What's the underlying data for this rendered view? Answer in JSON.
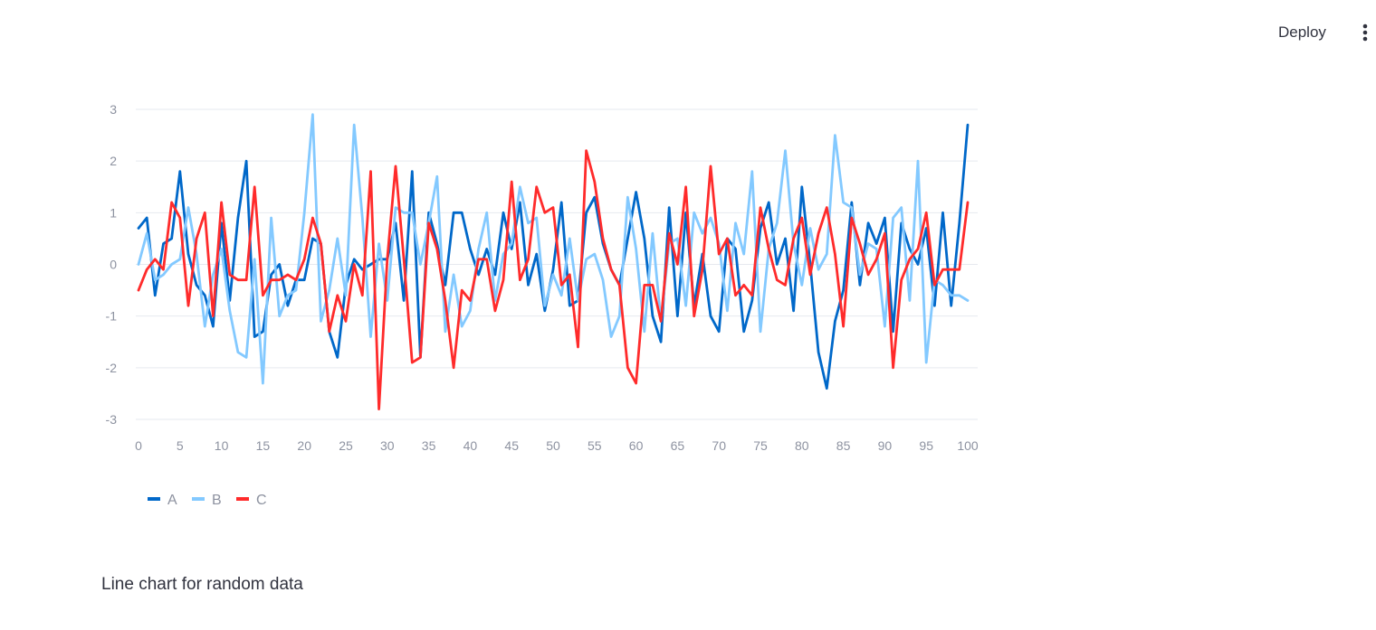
{
  "header": {
    "deploy_label": "Deploy",
    "menu_icon": "vertical-ellipsis-icon"
  },
  "caption": "Line chart for random data",
  "chart_data": {
    "type": "line",
    "title": "",
    "xlabel": "",
    "ylabel": "",
    "xlim": [
      0,
      100
    ],
    "ylim": [
      -3,
      3
    ],
    "xticks": [
      0,
      5,
      10,
      15,
      20,
      25,
      30,
      35,
      40,
      45,
      50,
      55,
      60,
      65,
      70,
      75,
      80,
      85,
      90,
      95,
      100
    ],
    "yticks": [
      -3,
      -2,
      -1,
      0,
      1,
      2,
      3
    ],
    "grid": true,
    "legend": "bottom-left",
    "x": [
      0,
      1,
      2,
      3,
      4,
      5,
      6,
      7,
      8,
      9,
      10,
      11,
      12,
      13,
      14,
      15,
      16,
      17,
      18,
      19,
      20,
      21,
      22,
      23,
      24,
      25,
      26,
      27,
      28,
      29,
      30,
      31,
      32,
      33,
      34,
      35,
      36,
      37,
      38,
      39,
      40,
      41,
      42,
      43,
      44,
      45,
      46,
      47,
      48,
      49,
      50,
      51,
      52,
      53,
      54,
      55,
      56,
      57,
      58,
      59,
      60,
      61,
      62,
      63,
      64,
      65,
      66,
      67,
      68,
      69,
      70,
      71,
      72,
      73,
      74,
      75,
      76,
      77,
      78,
      79,
      80,
      81,
      82,
      83,
      84,
      85,
      86,
      87,
      88,
      89,
      90,
      91,
      92,
      93,
      94,
      95,
      96,
      97,
      98,
      99,
      100
    ],
    "series": [
      {
        "name": "A",
        "color": "#0068c9",
        "values": [
          0.7,
          0.9,
          -0.6,
          0.4,
          0.5,
          1.8,
          0.2,
          -0.4,
          -0.6,
          -1.2,
          0.8,
          -0.7,
          0.9,
          2.0,
          -1.4,
          -1.3,
          -0.2,
          0.0,
          -0.8,
          -0.3,
          -0.3,
          0.5,
          0.4,
          -1.3,
          -1.8,
          -0.4,
          0.1,
          -0.1,
          0.0,
          0.1,
          0.1,
          0.8,
          -0.7,
          1.8,
          -1.8,
          1.0,
          0.4,
          -0.4,
          1.0,
          1.0,
          0.3,
          -0.2,
          0.3,
          -0.2,
          1.0,
          0.3,
          1.2,
          -0.4,
          0.2,
          -0.9,
          -0.1,
          1.2,
          -0.8,
          -0.7,
          1.0,
          1.3,
          0.4,
          -0.1,
          -0.4,
          0.5,
          1.4,
          0.5,
          -1.0,
          -1.5,
          1.1,
          -1.0,
          1.0,
          -0.8,
          0.2,
          -1.0,
          -1.3,
          0.5,
          0.3,
          -1.3,
          -0.7,
          0.7,
          1.2,
          0.0,
          0.5,
          -0.9,
          1.5,
          0.0,
          -1.7,
          -2.4,
          -1.1,
          -0.5,
          1.2,
          -0.4,
          0.8,
          0.4,
          0.9,
          -1.3,
          0.8,
          0.3,
          0.0,
          0.7,
          -0.8,
          1.0,
          -0.8,
          0.8,
          2.7
        ]
      },
      {
        "name": "B",
        "color": "#83c9ff",
        "values": [
          0.0,
          0.6,
          -0.3,
          -0.2,
          0.0,
          0.1,
          1.1,
          0.2,
          -1.2,
          -0.2,
          0.3,
          -0.9,
          -1.7,
          -1.8,
          0.1,
          -2.3,
          0.9,
          -1.0,
          -0.6,
          -0.5,
          1.0,
          2.9,
          -1.1,
          -0.5,
          0.5,
          -0.6,
          2.7,
          0.9,
          -1.4,
          0.4,
          -0.7,
          1.1,
          1.0,
          1.0,
          0.0,
          0.8,
          1.7,
          -1.3,
          -0.2,
          -1.2,
          -0.9,
          0.3,
          1.0,
          -0.7,
          0.2,
          0.4,
          1.5,
          0.8,
          0.9,
          -0.8,
          -0.2,
          -0.6,
          0.5,
          -0.7,
          0.1,
          0.2,
          -0.3,
          -1.4,
          -1.0,
          1.3,
          0.3,
          -1.3,
          0.6,
          -1.1,
          0.4,
          0.5,
          -0.8,
          1.0,
          0.6,
          0.9,
          0.4,
          -0.9,
          0.8,
          0.2,
          1.8,
          -1.3,
          0.3,
          0.8,
          2.2,
          0.4,
          -0.4,
          0.7,
          -0.1,
          0.2,
          2.5,
          1.2,
          1.1,
          -0.2,
          0.4,
          0.3,
          -1.2,
          0.9,
          1.1,
          -0.7,
          2.0,
          -1.9,
          -0.3,
          -0.4,
          -0.6,
          -0.6,
          -0.7
        ]
      },
      {
        "name": "C",
        "color": "#ff2b2b",
        "values": [
          -0.5,
          -0.1,
          0.1,
          -0.1,
          1.2,
          0.9,
          -0.8,
          0.5,
          1.0,
          -1.0,
          1.2,
          -0.2,
          -0.3,
          -0.3,
          1.5,
          -0.6,
          -0.3,
          -0.3,
          -0.2,
          -0.3,
          0.1,
          0.9,
          0.4,
          -1.3,
          -0.6,
          -1.1,
          0.0,
          -0.6,
          1.8,
          -2.8,
          0.1,
          1.9,
          0.1,
          -1.9,
          -1.8,
          0.8,
          0.3,
          -0.7,
          -2.0,
          -0.5,
          -0.7,
          0.1,
          0.1,
          -0.9,
          -0.3,
          1.6,
          -0.3,
          0.1,
          1.5,
          1.0,
          1.1,
          -0.4,
          -0.2,
          -1.6,
          2.2,
          1.6,
          0.5,
          -0.1,
          -0.4,
          -2.0,
          -2.3,
          -0.4,
          -0.4,
          -1.1,
          0.6,
          0.0,
          1.5,
          -1.0,
          -0.1,
          1.9,
          0.2,
          0.5,
          -0.6,
          -0.4,
          -0.6,
          1.1,
          0.3,
          -0.3,
          -0.4,
          0.5,
          0.9,
          -0.2,
          0.6,
          1.1,
          0.2,
          -1.2,
          0.9,
          0.4,
          -0.2,
          0.1,
          0.6,
          -2.0,
          -0.3,
          0.1,
          0.3,
          1.0,
          -0.4,
          -0.1,
          -0.1,
          -0.1,
          1.2
        ]
      }
    ]
  }
}
